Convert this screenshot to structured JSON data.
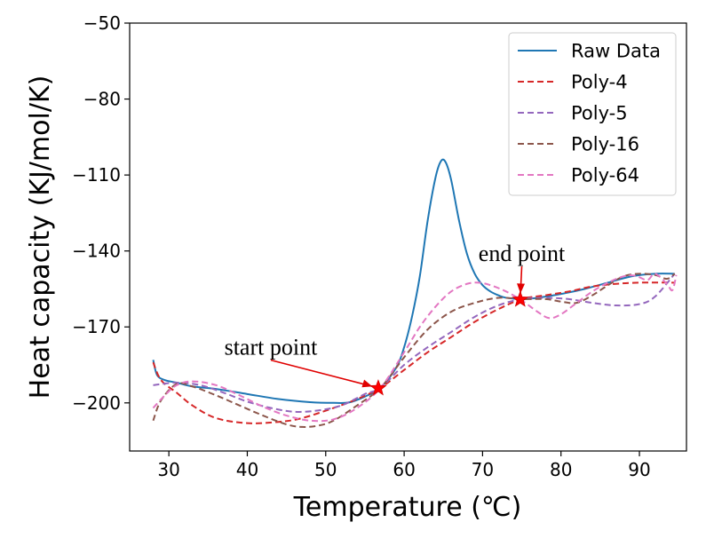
{
  "chart_data": {
    "type": "line",
    "xlabel": "Temperature (℃)",
    "ylabel": "Heat capacity (KJ/mol/K)",
    "xlim": [
      25,
      96
    ],
    "ylim": [
      -219,
      -50
    ],
    "xticks": [
      30,
      40,
      50,
      60,
      70,
      80,
      90
    ],
    "yticks": [
      -50,
      -80,
      -110,
      -140,
      -170,
      -200
    ],
    "yticklabels": [
      "−50",
      "−80",
      "−110",
      "−140",
      "−170",
      "−200"
    ],
    "legend_position": "top-right",
    "series": [
      {
        "name": "Raw Data",
        "color": "#1f77b4",
        "style": "solid",
        "points": [
          [
            28,
            -183
          ],
          [
            28.5,
            -189
          ],
          [
            29.5,
            -191
          ],
          [
            31,
            -192
          ],
          [
            33,
            -193.5
          ],
          [
            36,
            -194.5
          ],
          [
            40,
            -196.5
          ],
          [
            44,
            -198.5
          ],
          [
            48,
            -199.7
          ],
          [
            51,
            -200
          ],
          [
            53,
            -199.8
          ],
          [
            55,
            -197.5
          ],
          [
            57,
            -194
          ],
          [
            59,
            -186
          ],
          [
            60,
            -178
          ],
          [
            61,
            -166
          ],
          [
            62,
            -150
          ],
          [
            63,
            -128
          ],
          [
            64,
            -111
          ],
          [
            64.7,
            -104.5
          ],
          [
            65.3,
            -105
          ],
          [
            66,
            -112
          ],
          [
            67,
            -128
          ],
          [
            68,
            -141
          ],
          [
            69,
            -149
          ],
          [
            70,
            -153.5
          ],
          [
            71,
            -156
          ],
          [
            72,
            -157.5
          ],
          [
            73,
            -158.5
          ],
          [
            75,
            -159
          ],
          [
            77,
            -158.5
          ],
          [
            80,
            -157
          ],
          [
            83,
            -155
          ],
          [
            86,
            -152.5
          ],
          [
            89,
            -150
          ],
          [
            92,
            -149
          ],
          [
            94.5,
            -149
          ]
        ]
      },
      {
        "name": "Poly-4",
        "color": "#d62728",
        "style": "dashed",
        "points": [
          [
            28,
            -184
          ],
          [
            29,
            -191
          ],
          [
            31,
            -196
          ],
          [
            33,
            -201
          ],
          [
            36,
            -206
          ],
          [
            40,
            -208
          ],
          [
            44,
            -207.5
          ],
          [
            47,
            -206
          ],
          [
            51,
            -202
          ],
          [
            54,
            -198.5
          ],
          [
            57,
            -194
          ],
          [
            60,
            -187
          ],
          [
            63,
            -180
          ],
          [
            66,
            -174
          ],
          [
            69,
            -168
          ],
          [
            72,
            -163
          ],
          [
            75,
            -159
          ],
          [
            78,
            -157.5
          ],
          [
            81,
            -156
          ],
          [
            84,
            -154
          ],
          [
            87,
            -153
          ],
          [
            90,
            -152.5
          ],
          [
            94.5,
            -152.5
          ]
        ]
      },
      {
        "name": "Poly-5",
        "color": "#9467bd",
        "style": "dashed",
        "points": [
          [
            28,
            -193
          ],
          [
            31,
            -192
          ],
          [
            34,
            -193
          ],
          [
            37,
            -196
          ],
          [
            40,
            -199.5
          ],
          [
            43,
            -202
          ],
          [
            46,
            -203.5
          ],
          [
            49,
            -203
          ],
          [
            52,
            -201
          ],
          [
            55,
            -196.5
          ],
          [
            57,
            -194
          ],
          [
            60,
            -185
          ],
          [
            63,
            -178
          ],
          [
            66,
            -172
          ],
          [
            69,
            -166
          ],
          [
            72,
            -161.5
          ],
          [
            75,
            -159
          ],
          [
            78,
            -158.5
          ],
          [
            81,
            -159
          ],
          [
            84,
            -160.5
          ],
          [
            87,
            -161.5
          ],
          [
            90,
            -161
          ],
          [
            92,
            -158
          ],
          [
            94.5,
            -149
          ]
        ]
      },
      {
        "name": "Poly-16",
        "color": "#8c564b",
        "style": "dashed",
        "points": [
          [
            28,
            -207
          ],
          [
            29,
            -199
          ],
          [
            31,
            -192.5
          ],
          [
            33,
            -193.5
          ],
          [
            36,
            -197
          ],
          [
            39,
            -201
          ],
          [
            42,
            -205
          ],
          [
            45,
            -208.5
          ],
          [
            47,
            -209.5
          ],
          [
            49,
            -209
          ],
          [
            51,
            -207
          ],
          [
            54,
            -201
          ],
          [
            57,
            -194
          ],
          [
            60,
            -182
          ],
          [
            63,
            -171
          ],
          [
            66,
            -164
          ],
          [
            69,
            -160.5
          ],
          [
            72,
            -158.5
          ],
          [
            75,
            -159
          ],
          [
            78,
            -159
          ],
          [
            80,
            -160
          ],
          [
            82,
            -160.5
          ],
          [
            84,
            -157.5
          ],
          [
            86,
            -153.5
          ],
          [
            88,
            -150
          ],
          [
            90,
            -149
          ],
          [
            92,
            -149.5
          ],
          [
            93.5,
            -151
          ],
          [
            94.5,
            -149
          ]
        ]
      },
      {
        "name": "Poly-64",
        "color": "#e377c2",
        "style": "dashed",
        "points": [
          [
            28,
            -202
          ],
          [
            29.5,
            -197
          ],
          [
            31,
            -193
          ],
          [
            33,
            -191.5
          ],
          [
            36,
            -193
          ],
          [
            39,
            -197
          ],
          [
            42,
            -201.5
          ],
          [
            45,
            -205
          ],
          [
            48,
            -207
          ],
          [
            51,
            -206.5
          ],
          [
            54,
            -202
          ],
          [
            57,
            -194
          ],
          [
            60,
            -180
          ],
          [
            62,
            -170
          ],
          [
            64,
            -162
          ],
          [
            66,
            -156
          ],
          [
            68,
            -153
          ],
          [
            69.5,
            -152.5
          ],
          [
            71,
            -153.5
          ],
          [
            73,
            -156
          ],
          [
            75,
            -159.5
          ],
          [
            77,
            -164
          ],
          [
            78.5,
            -166.5
          ],
          [
            80,
            -165
          ],
          [
            82,
            -160.5
          ],
          [
            84,
            -156
          ],
          [
            86,
            -152.5
          ],
          [
            88,
            -150
          ],
          [
            89.5,
            -149.8
          ],
          [
            91,
            -151.5
          ],
          [
            92,
            -149
          ],
          [
            93.5,
            -153
          ],
          [
            94.2,
            -155.5
          ],
          [
            94.7,
            -149.5
          ]
        ]
      }
    ],
    "annotations": [
      {
        "label": "start point",
        "point": [
          56.7,
          -194.2
        ],
        "text_at": [
          43,
          -181
        ]
      },
      {
        "label": "end point",
        "point": [
          74.8,
          -159.2
        ],
        "text_at": [
          75,
          -144
        ]
      }
    ]
  }
}
